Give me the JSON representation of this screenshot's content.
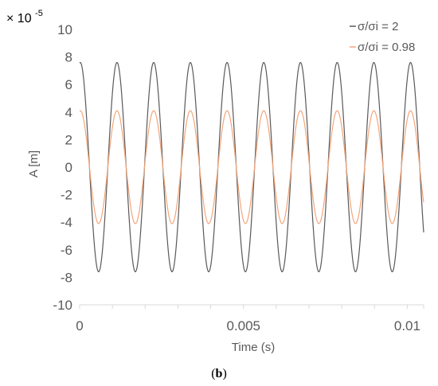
{
  "chart_data": {
    "type": "line",
    "scale_factor": {
      "base": "× 10",
      "exponent": "-5"
    },
    "xlabel": "Time (s)",
    "ylabel": "A [m]",
    "xlim": [
      0,
      0.0105
    ],
    "ylim": [
      -10,
      10
    ],
    "x_ticks": [
      0,
      0.005,
      0.01
    ],
    "x_tick_labels": [
      "0",
      "0.005",
      "0.01"
    ],
    "x_minor_ticks": [
      0.001,
      0.002,
      0.003,
      0.004,
      0.006,
      0.007,
      0.008,
      0.009,
      0.0105
    ],
    "y_ticks": [
      -10,
      -8,
      -6,
      -4,
      -2,
      0,
      2,
      4,
      6,
      8,
      10
    ],
    "y_tick_labels": [
      "-10",
      "-8",
      "-6",
      "-4",
      "-2",
      "0",
      "2",
      "4",
      "6",
      "8",
      "10"
    ],
    "grid": false,
    "legend_position": "top-right",
    "series": [
      {
        "name": "σ/σi = 2",
        "color": "#595959",
        "amplitude": 7.6,
        "period": 0.00112,
        "phase_offset": 2e-05
      },
      {
        "name": "σ/σi = 0.98",
        "color": "#f4a57a",
        "amplitude": 4.1,
        "period": 0.00112,
        "phase_offset": 2e-05
      }
    ],
    "caption": {
      "open": "(",
      "label": "b",
      "close": ")"
    }
  }
}
